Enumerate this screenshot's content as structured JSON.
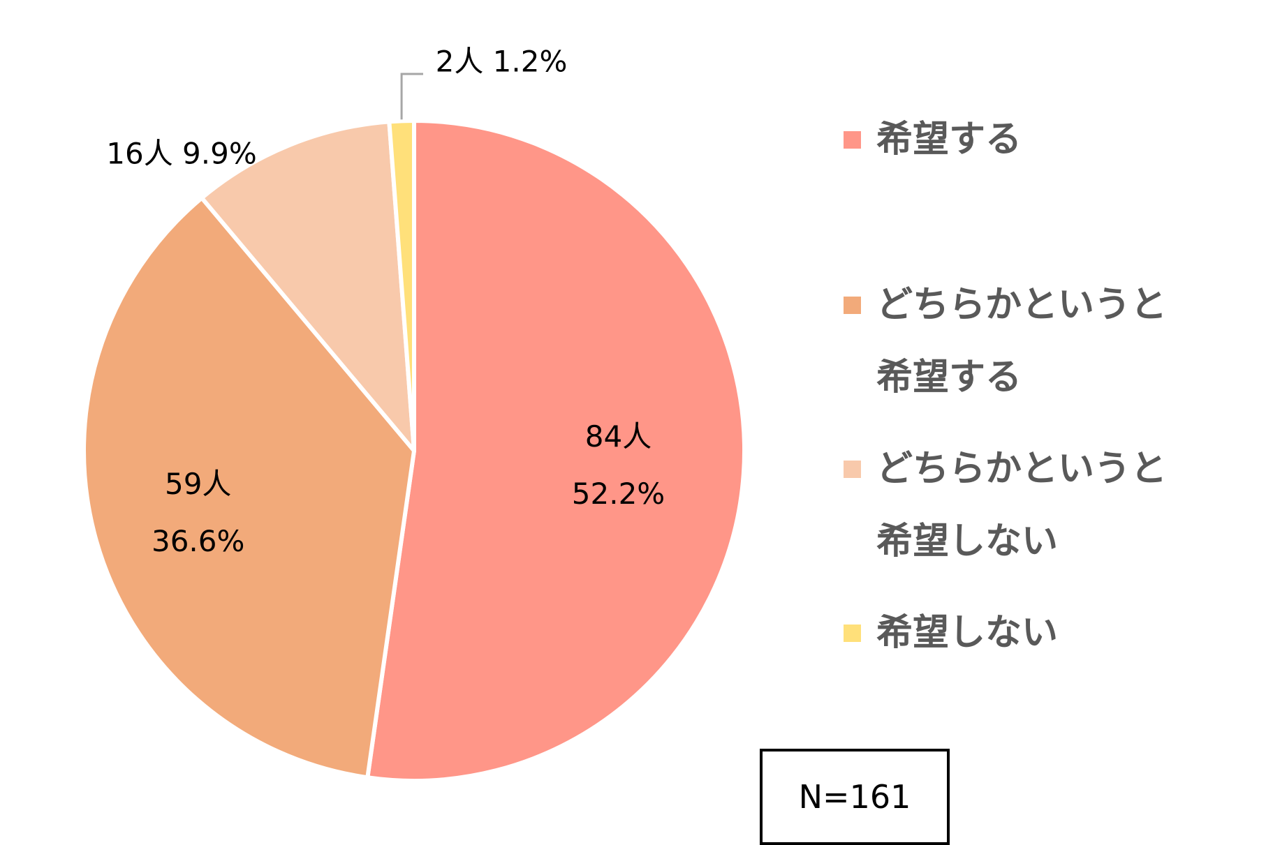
{
  "chart_data": {
    "type": "pie",
    "slices": [
      {
        "label": "希望する",
        "legend_lines": [
          "希望する"
        ],
        "count_label": "84人",
        "percent_label": "52.2%",
        "value": 52.2,
        "color": "#FF9688"
      },
      {
        "label": "どちらかというと希望する",
        "legend_lines": [
          "どちらかというと",
          "希望する"
        ],
        "count_label": "59人",
        "percent_label": "36.6%",
        "value": 36.6,
        "color": "#F2AA7A"
      },
      {
        "label": "どちらかというと希望しない",
        "legend_lines": [
          "どちらかというと",
          "希望しない"
        ],
        "count_label": "16人",
        "percent_label": "9.9%",
        "value": 9.9,
        "color": "#F8C9AB"
      },
      {
        "label": "希望しない",
        "legend_lines": [
          "希望しない"
        ],
        "count_label": "2人",
        "percent_label": "1.2%",
        "value": 1.2,
        "color": "#FFE07A"
      }
    ],
    "legend_position": "right",
    "start_angle_deg": 0,
    "direction": "clockwise",
    "total_label": "N=161"
  }
}
